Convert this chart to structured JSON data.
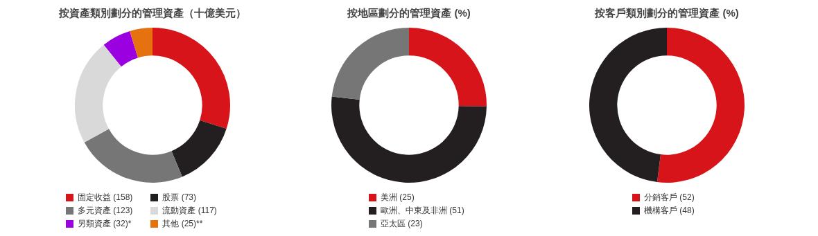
{
  "chart_data": [
    {
      "type": "donut",
      "title": "按資產類別劃分的管理資產（十億美元）",
      "categories": [
        "固定收益",
        "股票",
        "多元資產",
        "流動資產",
        "另類資產",
        "其他"
      ],
      "values": [
        158,
        73,
        123,
        117,
        32,
        25
      ],
      "value_labels": [
        "(158)",
        "(73)",
        "(123)",
        "(117)",
        "(32)*",
        "(25)**"
      ],
      "colors": [
        "#d7141a",
        "#231f20",
        "#767676",
        "#d9d9d9",
        "#9b00e0",
        "#e5720f"
      ],
      "legend": "bottom"
    },
    {
      "type": "donut",
      "title": "按地區劃分的管理資產 (%)",
      "categories": [
        "美洲",
        "歐洲、中東及非洲",
        "亞太區"
      ],
      "values": [
        25,
        51,
        23
      ],
      "value_labels": [
        "(25)",
        "(51)",
        "(23)"
      ],
      "colors": [
        "#d7141a",
        "#231f20",
        "#767676"
      ],
      "legend": "bottom"
    },
    {
      "type": "donut",
      "title": "按客戶類別劃分的管理資產 (%)",
      "categories": [
        "分銷客戶",
        "機構客戶"
      ],
      "values": [
        52,
        48
      ],
      "value_labels": [
        "(52)",
        "(48)"
      ],
      "colors": [
        "#d7141a",
        "#231f20"
      ],
      "legend": "bottom"
    }
  ]
}
